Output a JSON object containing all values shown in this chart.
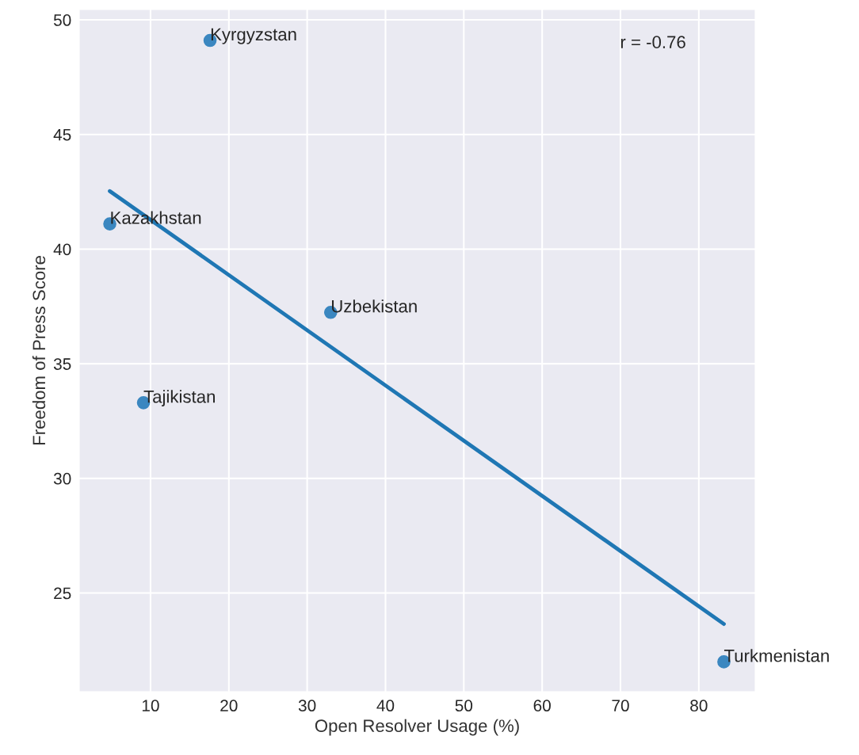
{
  "chart_data": {
    "type": "scatter",
    "xlabel": "Open Resolver Usage (%)",
    "ylabel": "Freedom of Press Score",
    "xlim": [
      0.9,
      87.2
    ],
    "xticks": [
      10,
      20,
      30,
      40,
      50,
      60,
      70,
      80
    ],
    "ylim": [
      20.7,
      50.45
    ],
    "yticks": [
      25,
      30,
      35,
      40,
      45,
      50
    ],
    "grid": true,
    "series": [
      {
        "marker": "circle",
        "color": "#3b87c0",
        "x": [
          17.6,
          4.8,
          9.1,
          33.0,
          83.2
        ],
        "values": [
          49.1,
          41.1,
          33.3,
          37.24,
          22.0
        ]
      },
      {
        "type": "line",
        "marker": "none",
        "color": "#1f77b4",
        "x": [
          4.8,
          83.2
        ],
        "values": [
          42.53,
          23.65
        ]
      }
    ],
    "annotations": [
      {
        "text": "Kyrgyzstan",
        "x": 17.6,
        "y": 49.1
      },
      {
        "text": "Kazakhstan",
        "x": 4.8,
        "y": 41.1
      },
      {
        "text": "Tajikistan",
        "x": 9.1,
        "y": 33.3
      },
      {
        "text": "Uzbekistan",
        "x": 33.0,
        "y": 37.24
      },
      {
        "text": "Turkmenistan",
        "x": 83.2,
        "y": 22.0
      },
      "r = -0.76"
    ]
  }
}
